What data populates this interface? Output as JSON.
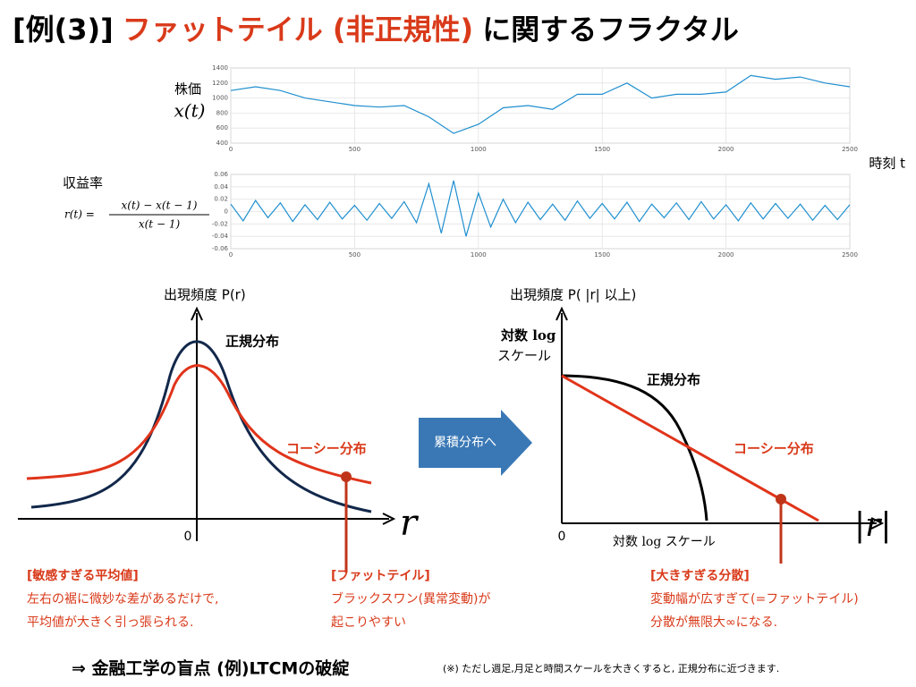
{
  "title": {
    "prefix": "[例(3)]",
    "highlight": "ファットテイル (非正規性)",
    "suffix": "に関するフラクタル"
  },
  "chart_data": [
    {
      "type": "line",
      "ylabel": "株価",
      "ysymbol": "x(t)",
      "xlabel": "時刻 t",
      "color": "#1f8fcf",
      "grid": true,
      "xlim": [
        0,
        2500
      ],
      "xticks": [
        0,
        500,
        1000,
        1500,
        2000,
        2500
      ],
      "ylim": [
        400,
        1400
      ],
      "yticks": [
        400,
        600,
        800,
        1000,
        1200,
        1400
      ],
      "x": [
        0,
        100,
        200,
        300,
        400,
        500,
        600,
        700,
        800,
        900,
        1000,
        1100,
        1200,
        1300,
        1400,
        1500,
        1600,
        1700,
        1800,
        1900,
        2000,
        2100,
        2200,
        2300,
        2400,
        2500
      ],
      "values": [
        1100,
        1150,
        1100,
        1000,
        950,
        900,
        880,
        900,
        750,
        530,
        650,
        870,
        900,
        850,
        1050,
        1050,
        1200,
        1000,
        1050,
        1050,
        1080,
        1300,
        1250,
        1280,
        1200,
        1150
      ]
    },
    {
      "type": "line",
      "ylabel": "収益率",
      "formula": {
        "lhs": "r(t) =",
        "numerator": "x(t) − x(t − 1)",
        "denominator": "x(t − 1)"
      },
      "color": "#1f8fcf",
      "grid": true,
      "xlim": [
        0,
        2500
      ],
      "xticks": [
        0,
        500,
        1000,
        1500,
        2000,
        2500
      ],
      "ylim": [
        -0.06,
        0.06
      ],
      "yticks": [
        -0.06,
        -0.04,
        -0.02,
        0,
        0.02,
        0.04,
        0.06
      ],
      "x": [
        0,
        50,
        100,
        150,
        200,
        250,
        300,
        350,
        400,
        450,
        500,
        550,
        600,
        650,
        700,
        750,
        800,
        850,
        900,
        950,
        1000,
        1050,
        1100,
        1150,
        1200,
        1250,
        1300,
        1350,
        1400,
        1450,
        1500,
        1550,
        1600,
        1650,
        1700,
        1750,
        1800,
        1850,
        1900,
        1950,
        2000,
        2050,
        2100,
        2150,
        2200,
        2250,
        2300,
        2350,
        2400,
        2450,
        2500
      ],
      "values": [
        0.012,
        -0.015,
        0.018,
        -0.01,
        0.014,
        -0.016,
        0.011,
        -0.013,
        0.015,
        -0.012,
        0.01,
        -0.014,
        0.013,
        -0.011,
        0.016,
        -0.018,
        0.045,
        -0.035,
        0.05,
        -0.04,
        0.03,
        -0.025,
        0.02,
        -0.018,
        0.015,
        -0.013,
        0.012,
        -0.014,
        0.017,
        -0.011,
        0.013,
        -0.012,
        0.015,
        -0.016,
        0.012,
        -0.01,
        0.014,
        -0.013,
        0.016,
        -0.012,
        0.011,
        -0.015,
        0.014,
        -0.012,
        0.013,
        -0.011,
        0.012,
        -0.014,
        0.01,
        -0.013,
        0.011
      ]
    }
  ],
  "left_diagram": {
    "ylabel": "出現頻度 P(r)",
    "normal": "正規分布",
    "cauchy": "コーシー分布",
    "origin": "0",
    "axis": "r"
  },
  "arrow": "累積分布へ",
  "right_diagram": {
    "ylabel": "出現頻度 P( |r| 以上)",
    "ylog1": "対数 log",
    "ylog2": "スケール",
    "normal": "正規分布",
    "cauchy": "コーシー分布",
    "origin": "0",
    "xlog": "対数 log スケール",
    "axis": "|r|"
  },
  "notes": [
    {
      "title": "[敏感すぎる平均値]",
      "lines": [
        "左右の裾に微妙な差があるだけで,",
        "平均値が大きく引っ張られる."
      ]
    },
    {
      "title": "[ファットテイル]",
      "lines": [
        "ブラックスワン(異常変動)が",
        "起こりやすい"
      ]
    },
    {
      "title": "[大きすぎる分散]",
      "lines": [
        "変動幅が広すぎて(=ファットテイル)",
        "分散が無限大∞になる."
      ]
    }
  ],
  "conclusion": "⇒ 金融工学の盲点 (例)LTCMの破綻",
  "footnote": "(※) ただし週足,月足と時間スケールを大きくすると, 正規分布に近づきます."
}
